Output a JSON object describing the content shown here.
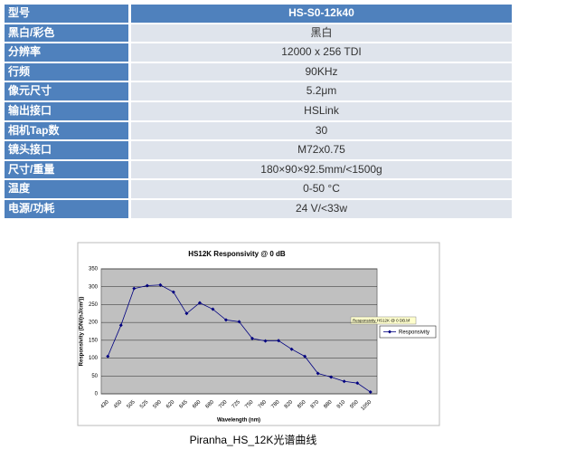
{
  "table": {
    "rows": [
      [
        "型号",
        "HS-S0-12k40"
      ],
      [
        "黑白/彩色",
        "黑白"
      ],
      [
        "分辨率",
        "12000 x 256 TDI"
      ],
      [
        "行频",
        "90KHz"
      ],
      [
        "像元尺寸",
        "5.2μm"
      ],
      [
        "输出接口",
        "HSLink"
      ],
      [
        "相机Tap数",
        "30"
      ],
      [
        "镜头接口",
        "M72x0.75"
      ],
      [
        "尺寸/重量",
        "180×90×92.5mm/<1500g"
      ],
      [
        "温度",
        "0-50 °C"
      ],
      [
        "电源/功耗",
        "24 V/<33w"
      ]
    ]
  },
  "chart_data": {
    "type": "line",
    "title": "HS12K Responsivity @ 0 dB",
    "x_label": "Wavelength (nm)",
    "y_label": "Responsivity (DN/(nJ/cm²))",
    "annotation": "Responsivity HS12K @ 0 DB.bf",
    "categories": [
      "430",
      "450",
      "505",
      "525",
      "590",
      "620",
      "645",
      "660",
      "680",
      "700",
      "725",
      "750",
      "760",
      "780",
      "820",
      "850",
      "870",
      "880",
      "910",
      "950",
      "1050"
    ],
    "series": [
      {
        "name": "Responsivity",
        "color": "#000080",
        "values": [
          105,
          192,
          295,
          303,
          305,
          285,
          225,
          255,
          237,
          207,
          202,
          155,
          148,
          149,
          125,
          105,
          57,
          47,
          35,
          30,
          5
        ]
      }
    ],
    "ylim": [
      0,
      350
    ],
    "yticks": [
      0,
      50,
      100,
      150,
      200,
      250,
      300,
      350
    ],
    "grid": true
  },
  "caption": "Piranha_HS_12K光谱曲线"
}
